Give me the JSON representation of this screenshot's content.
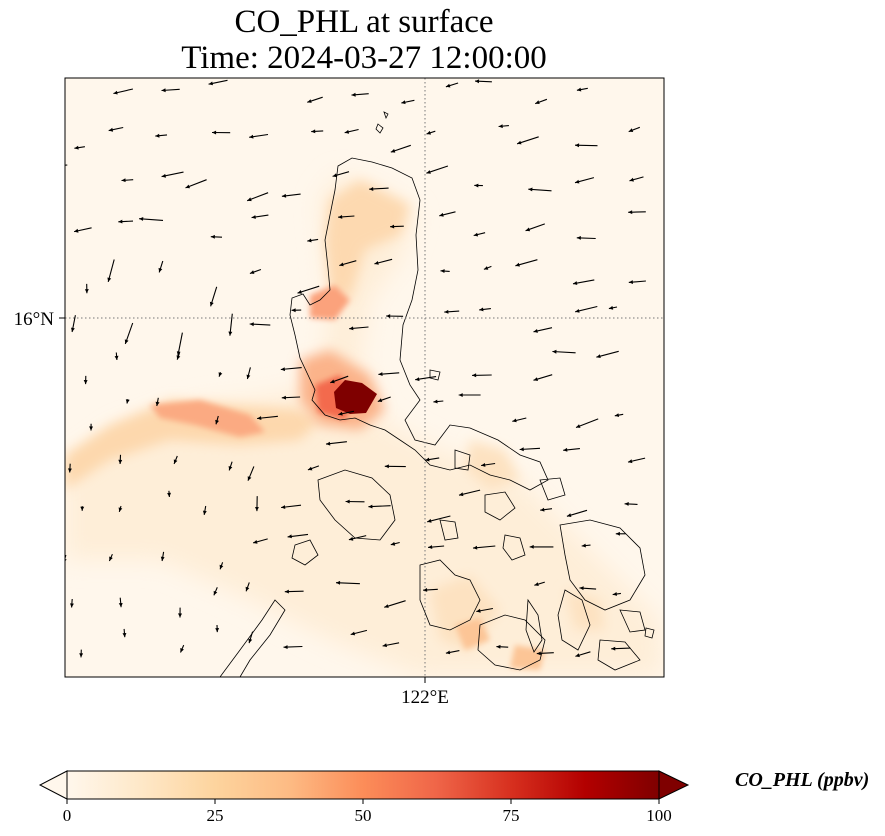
{
  "title": {
    "line1": "CO_PHL at surface",
    "line2": "Time: 2024-03-27 12:00:00"
  },
  "axes": {
    "lat_label": "16°N",
    "lon_label": "122°E"
  },
  "colorbar": {
    "title": "CO_PHL (ppbv)",
    "ticks": [
      "0",
      "25",
      "50",
      "75",
      "100"
    ],
    "min": 0,
    "max": 100,
    "colormap": "OrRd",
    "colors": [
      "#fff7ec",
      "#fee8c8",
      "#fdd49e",
      "#fdbb84",
      "#fc8d59",
      "#ef6548",
      "#d7301f",
      "#b30000",
      "#7f0000"
    ],
    "extend": "both"
  },
  "map": {
    "background_color": "#fff7ec",
    "gridline_lat": 16,
    "gridline_lon": 122,
    "vector_field": "wind arrows, predominantly easterly"
  }
}
